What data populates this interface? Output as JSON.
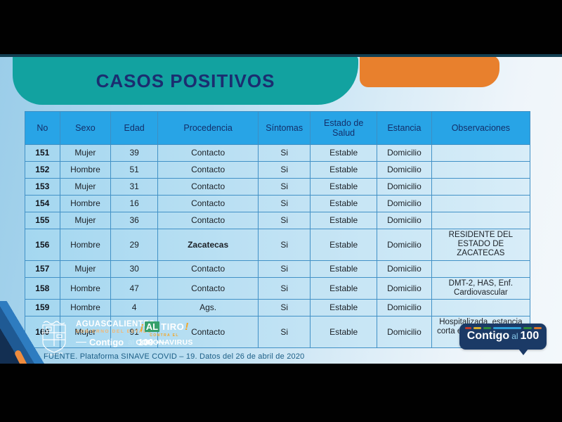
{
  "header": {
    "title": "CASOS POSITIVOS"
  },
  "table": {
    "columns": [
      "No",
      "Sexo",
      "Edad",
      "Procedencia",
      "Síntomas",
      "Estado de Salud",
      "Estancia",
      "Observaciones"
    ],
    "rows": [
      {
        "no": "151",
        "sexo": "Mujer",
        "edad": "39",
        "procedencia": "Contacto",
        "procedencia_bold": false,
        "sintomas": "Si",
        "estado": "Estable",
        "estancia": "Domicilio",
        "observaciones": ""
      },
      {
        "no": "152",
        "sexo": "Hombre",
        "edad": "51",
        "procedencia": "Contacto",
        "procedencia_bold": false,
        "sintomas": "Si",
        "estado": "Estable",
        "estancia": "Domicilio",
        "observaciones": ""
      },
      {
        "no": "153",
        "sexo": "Mujer",
        "edad": "31",
        "procedencia": "Contacto",
        "procedencia_bold": false,
        "sintomas": "Si",
        "estado": "Estable",
        "estancia": "Domicilio",
        "observaciones": ""
      },
      {
        "no": "154",
        "sexo": "Hombre",
        "edad": "16",
        "procedencia": "Contacto",
        "procedencia_bold": false,
        "sintomas": "Si",
        "estado": "Estable",
        "estancia": "Domicilio",
        "observaciones": ""
      },
      {
        "no": "155",
        "sexo": "Mujer",
        "edad": "36",
        "procedencia": "Contacto",
        "procedencia_bold": false,
        "sintomas": "Si",
        "estado": "Estable",
        "estancia": "Domicilio",
        "observaciones": ""
      },
      {
        "no": "156",
        "sexo": "Hombre",
        "edad": "29",
        "procedencia": "Zacatecas",
        "procedencia_bold": true,
        "sintomas": "Si",
        "estado": "Estable",
        "estancia": "Domicilio",
        "observaciones": "RESIDENTE DEL ESTADO DE ZACATECAS"
      },
      {
        "no": "157",
        "sexo": "Mujer",
        "edad": "30",
        "procedencia": "Contacto",
        "procedencia_bold": false,
        "sintomas": "Si",
        "estado": "Estable",
        "estancia": "Domicilio",
        "observaciones": ""
      },
      {
        "no": "158",
        "sexo": "Hombre",
        "edad": "47",
        "procedencia": "Contacto",
        "procedencia_bold": false,
        "sintomas": "Si",
        "estado": "Estable",
        "estancia": "Domicilio",
        "observaciones": "DMT-2, HAS, Enf. Cardiovascular"
      },
      {
        "no": "159",
        "sexo": "Hombre",
        "edad": "4",
        "procedencia": "Ags.",
        "procedencia_bold": false,
        "sintomas": "Si",
        "estado": "Estable",
        "estancia": "Domicilio",
        "observaciones": ""
      },
      {
        "no": "160",
        "sexo": "Mujer",
        "edad": "91",
        "procedencia": "Contacto",
        "procedencia_bold": false,
        "sintomas": "Si",
        "estado": "Estable",
        "estancia": "Domicilio",
        "observaciones": "Hospitalizada, estancia corta en CHMH (alta por mejoría)"
      }
    ]
  },
  "footer": {
    "gov_logo": {
      "name": "AGUASCALIENTES",
      "subtitle": "GOBIERNO DEL ESTADO",
      "slogan_part1": "Contigo",
      "slogan_part2": "al",
      "slogan_part3": "100"
    },
    "campaign": {
      "excl_open": "¡",
      "word_al": "AL",
      "word_tiro": "TIRO",
      "excl_close": "!",
      "middle": "CONTRA EL",
      "bottom": "CORONAVIRUS"
    },
    "source": "FUENTE. Plataforma SINAVE COVID – 19. Datos del 26 de abril de 2020",
    "badge": {
      "part1": "Contigo",
      "part2": "al",
      "part3": "100"
    }
  },
  "colors": {
    "teal_banner": "#12a2a0",
    "orange_banner": "#e8802d",
    "table_header_blue": "#28a4e6",
    "title_navy": "#1b2d70",
    "badge_navy": "#1b3a66"
  }
}
